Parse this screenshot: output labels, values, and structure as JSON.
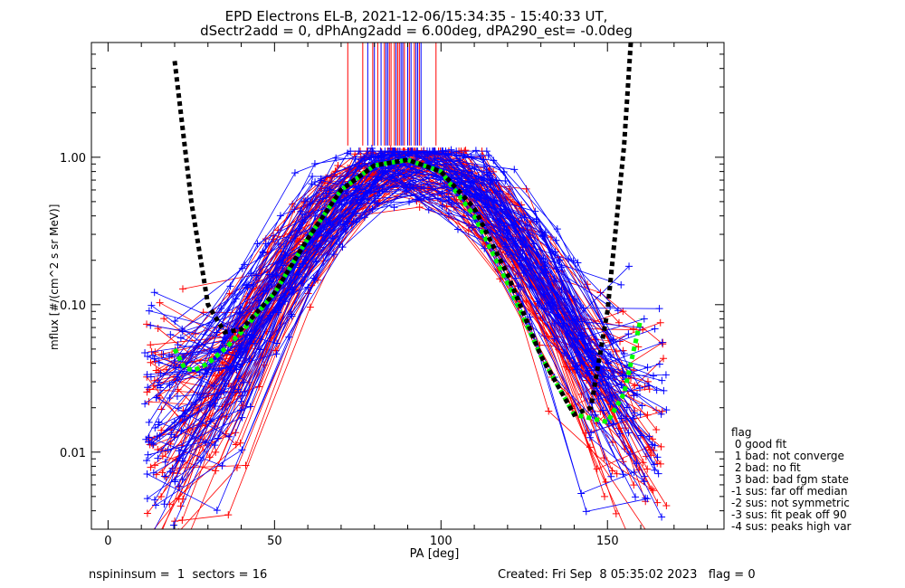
{
  "title_line1": "EPD Electrons EL-B, 2021-12-06/15:34:35 - 15:40:33 UT,",
  "title_line2": "dSectr2add = 0, dPhAng2add = 6.00deg, dPA290_est=  -0.0deg",
  "footer_left": "nspininsum =  1  sectors = 16",
  "footer_right": "Created: Fri Sep  8 05:35:02 2023   flag = 0",
  "legend": {
    "title": "flag",
    "items": [
      " 0 good fit",
      " 1 bad: not converge",
      " 2 bad: no fit",
      " 3 bad: bad fgm state",
      "-1 sus: far off median",
      "-2 sus: not symmetric",
      "-3 sus: fit peak off 90",
      "-4 sus: peaks high var"
    ]
  },
  "chart_data": {
    "type": "line",
    "xlabel": "PA [deg]",
    "ylabel": "mflux [#/(cm^2 s sr MeV)]",
    "xlim": [
      -5,
      185
    ],
    "ylim": [
      0.003,
      6
    ],
    "y_scale": "log",
    "x_ticks": [
      "0",
      "50",
      "100",
      "150"
    ],
    "y_ticks": [
      "0.01",
      "0.10",
      "1.00"
    ],
    "colors": {
      "red": "#ff0000",
      "blue": "#0000ff",
      "black_fit": "#000000",
      "green_fit": "#00ff00"
    },
    "black_fit": {
      "x": [
        20,
        25,
        30,
        35,
        40,
        50,
        60,
        70,
        80,
        90,
        100,
        110,
        120,
        130,
        140,
        145,
        150,
        155,
        157
      ],
      "y": [
        4.5,
        0.5,
        0.1,
        0.065,
        0.068,
        0.12,
        0.28,
        0.6,
        0.88,
        0.96,
        0.8,
        0.45,
        0.16,
        0.045,
        0.018,
        0.02,
        0.09,
        1.2,
        6.0
      ]
    },
    "green_fit": {
      "x": [
        20,
        23,
        26,
        30,
        35,
        40,
        50,
        60,
        70,
        80,
        90,
        100,
        110,
        120,
        130,
        140,
        150,
        155,
        160
      ],
      "y": [
        0.05,
        0.037,
        0.036,
        0.04,
        0.05,
        0.065,
        0.12,
        0.28,
        0.6,
        0.88,
        0.96,
        0.8,
        0.4,
        0.14,
        0.045,
        0.018,
        0.016,
        0.025,
        0.08
      ]
    },
    "vertical_markers": {
      "red_x": [
        72,
        76.5,
        79.5,
        81,
        83,
        84.5,
        85,
        86,
        87,
        87.5,
        89,
        90.5,
        92,
        93.5,
        98.5
      ],
      "blue_x": [
        78,
        80,
        82,
        83.5,
        84,
        86.5,
        88,
        88.5,
        90,
        91,
        92.5,
        93,
        94
      ],
      "y_range": [
        1.2,
        6.0
      ]
    },
    "red_curves_seed": 7,
    "blue_curves_seed": 13,
    "red_curves_count": 70,
    "blue_curves_count": 75
  }
}
